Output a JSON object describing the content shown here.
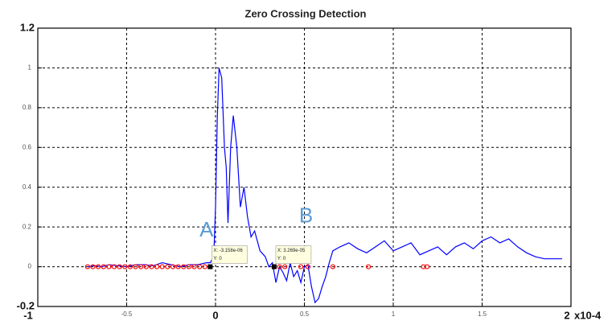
{
  "chart_data": {
    "type": "line",
    "title": "Zero Crossing Detection",
    "x_exponent_label": "x10-4",
    "xlim": [
      -1,
      2
    ],
    "ylim": [
      -0.2,
      1.2
    ],
    "xticks": [
      -1,
      -0.5,
      0,
      0.5,
      1,
      1.5,
      2
    ],
    "yticks": [
      -0.2,
      0,
      0.2,
      0.4,
      0.6,
      0.8,
      1,
      1.2
    ],
    "grid": true,
    "series": [
      {
        "color": "#0000ff",
        "x": [
          -0.72,
          -0.68,
          -0.64,
          -0.6,
          -0.55,
          -0.5,
          -0.45,
          -0.4,
          -0.35,
          -0.3,
          -0.25,
          -0.2,
          -0.15,
          -0.1,
          -0.05,
          -0.03,
          -0.01,
          0,
          0.01,
          0.02,
          0.035,
          0.05,
          0.06,
          0.07,
          0.085,
          0.1,
          0.12,
          0.14,
          0.16,
          0.18,
          0.2,
          0.22,
          0.25,
          0.28,
          0.3,
          0.32,
          0.34,
          0.36,
          0.38,
          0.4,
          0.42,
          0.44,
          0.46,
          0.48,
          0.5,
          0.52,
          0.54,
          0.56,
          0.58,
          0.6,
          0.62,
          0.64,
          0.66,
          0.7,
          0.75,
          0.8,
          0.85,
          0.9,
          0.95,
          1.0,
          1.05,
          1.1,
          1.15,
          1.2,
          1.25,
          1.3,
          1.35,
          1.4,
          1.45,
          1.5,
          1.55,
          1.6,
          1.65,
          1.7,
          1.75,
          1.8,
          1.85,
          1.9,
          1.95
        ],
        "values": [
          0,
          0.005,
          0,
          0.01,
          0.005,
          0,
          0.01,
          0.01,
          0.005,
          0.02,
          0.01,
          0,
          0.01,
          0.01,
          0.02,
          0.02,
          0.05,
          0.3,
          0.75,
          1.0,
          0.95,
          0.6,
          0.5,
          0.22,
          0.6,
          0.76,
          0.6,
          0.3,
          0.4,
          0.25,
          0.15,
          0.18,
          0.08,
          0.05,
          0,
          0.02,
          -0.08,
          0,
          -0.03,
          -0.07,
          0.02,
          -0.05,
          -0.02,
          -0.08,
          0,
          0.01,
          -0.1,
          -0.18,
          -0.16,
          -0.1,
          -0.05,
          0.02,
          0.08,
          0.1,
          0.12,
          0.09,
          0.07,
          0.1,
          0.13,
          0.08,
          0.1,
          0.12,
          0.06,
          0.08,
          0.1,
          0.06,
          0.1,
          0.12,
          0.09,
          0.13,
          0.15,
          0.12,
          0.14,
          0.1,
          0.07,
          0.05,
          0.04,
          0.04,
          0.04
        ]
      },
      {
        "color": "#ff0000",
        "marker": "circle",
        "x": [
          -0.72,
          -0.69,
          -0.66,
          -0.63,
          -0.6,
          -0.57,
          -0.54,
          -0.51,
          -0.48,
          -0.45,
          -0.42,
          -0.39,
          -0.36,
          -0.33,
          -0.3,
          -0.27,
          -0.24,
          -0.21,
          -0.18,
          -0.15,
          -0.12,
          -0.09,
          -0.06,
          0.33,
          0.36,
          0.39,
          0.48,
          0.52,
          0.66,
          0.86,
          1.17,
          1.19
        ],
        "values": [
          0,
          0,
          0,
          0,
          0,
          0,
          0,
          0,
          0,
          0,
          0,
          0,
          0,
          0,
          0,
          0,
          0,
          0,
          0,
          0,
          0,
          0,
          0,
          0,
          0,
          0,
          0,
          0,
          0,
          0,
          0,
          0
        ]
      }
    ],
    "datatips": [
      {
        "x": -0.03,
        "y": 0,
        "lines": [
          "X: -3.158e-06",
          "Y: 0"
        ]
      },
      {
        "x": 0.33,
        "y": 0,
        "lines": [
          "X: 3.269e-05",
          "Y: 0"
        ]
      }
    ],
    "annotations": [
      {
        "text": "A",
        "x": -0.09,
        "y": 0.18
      },
      {
        "text": "B",
        "x": 0.47,
        "y": 0.25
      }
    ]
  }
}
